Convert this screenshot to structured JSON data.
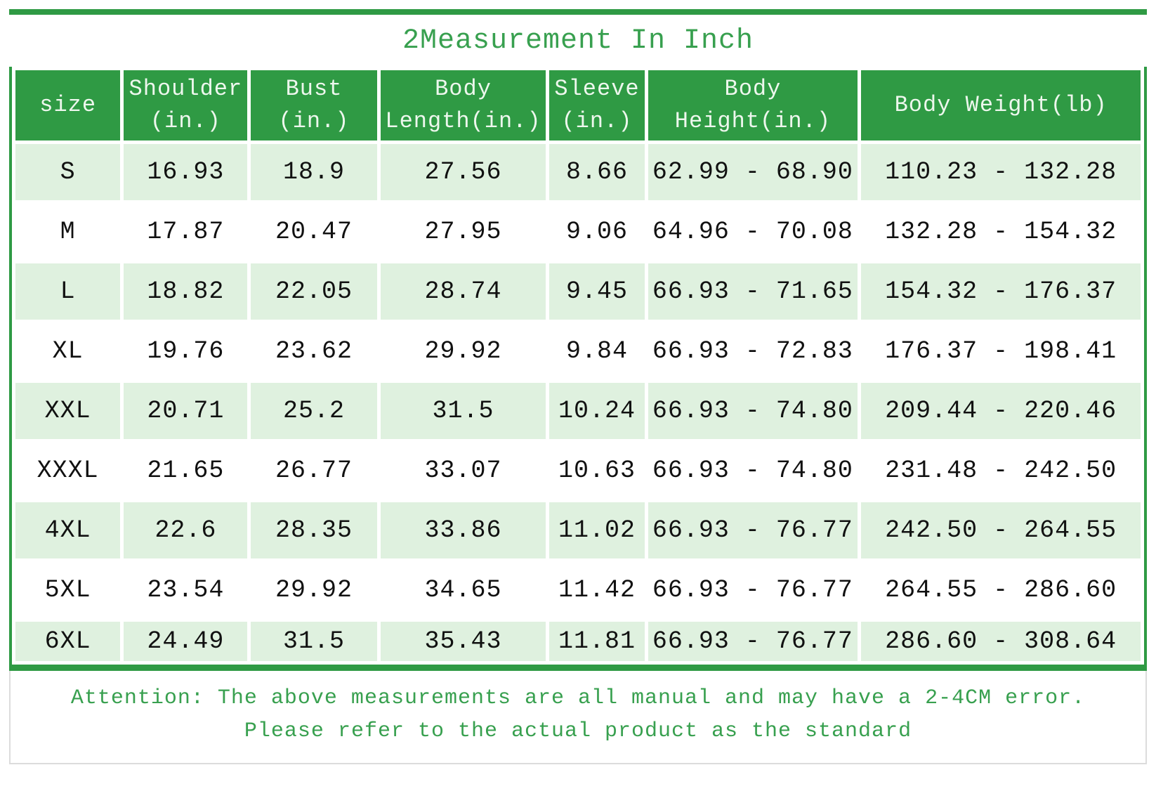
{
  "title": "2Measurement In Inch",
  "table": {
    "column_headers": [
      {
        "id": "size",
        "lines": [
          "size"
        ]
      },
      {
        "id": "shoulder",
        "lines": [
          "Shoulder",
          "(in.)"
        ]
      },
      {
        "id": "bust",
        "lines": [
          "Bust",
          "(in.)"
        ]
      },
      {
        "id": "body-length",
        "lines": [
          "Body",
          "Length(in.)"
        ]
      },
      {
        "id": "sleeve",
        "lines": [
          "Sleeve",
          "(in.)"
        ]
      },
      {
        "id": "body-height",
        "lines": [
          "Body",
          "Height(in.)"
        ]
      },
      {
        "id": "body-weight",
        "lines": [
          "Body Weight(lb)"
        ]
      }
    ],
    "rows": [
      [
        "S",
        "16.93",
        "18.9",
        "27.56",
        "8.66",
        "62.99 - 68.90",
        "110.23 - 132.28"
      ],
      [
        "M",
        "17.87",
        "20.47",
        "27.95",
        "9.06",
        "64.96 - 70.08",
        "132.28 - 154.32"
      ],
      [
        "L",
        "18.82",
        "22.05",
        "28.74",
        "9.45",
        "66.93 - 71.65",
        "154.32 - 176.37"
      ],
      [
        "XL",
        "19.76",
        "23.62",
        "29.92",
        "9.84",
        "66.93 - 72.83",
        "176.37 - 198.41"
      ],
      [
        "XXL",
        "20.71",
        "25.2",
        "31.5",
        "10.24",
        "66.93 - 74.80",
        "209.44 - 220.46"
      ],
      [
        "XXXL",
        "21.65",
        "26.77",
        "33.07",
        "10.63",
        "66.93 - 74.80",
        "231.48 - 242.50"
      ],
      [
        "4XL",
        "22.6",
        "28.35",
        "33.86",
        "11.02",
        "66.93 - 76.77",
        "242.50 - 264.55"
      ],
      [
        "5XL",
        "23.54",
        "29.92",
        "34.65",
        "11.42",
        "66.93 - 76.77",
        "264.55 - 286.60"
      ],
      [
        "6XL",
        "24.49",
        "31.5",
        "35.43",
        "11.81",
        "66.93 - 76.77",
        "286.60 - 308.64"
      ]
    ]
  },
  "footer": {
    "line1": "Attention: The above measurements are all manual and may have a 2-4CM error.",
    "line2": "Please refer to the actual product as the standard"
  },
  "colors": {
    "accent_green": "#2F9A44",
    "title_text_green": "#38A04F",
    "row_tint_green": "#DFF1DF",
    "header_text": "#EDF7ED",
    "body_text": "#111111",
    "attention_border_gray": "#DCDCDC"
  }
}
